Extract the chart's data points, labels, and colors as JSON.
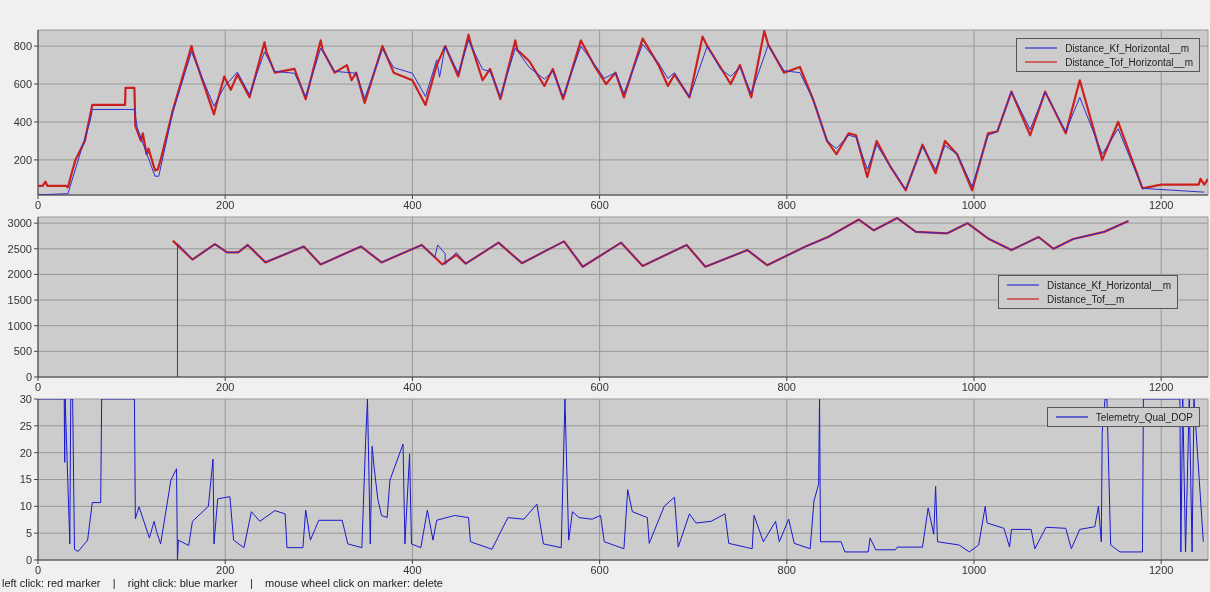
{
  "chart_data": [
    {
      "type": "line",
      "xlim": [
        0,
        1250
      ],
      "xticks": [
        0,
        200,
        400,
        600,
        800,
        1000,
        1200
      ],
      "ylim": [
        15,
        885
      ],
      "yticks": [
        200,
        400,
        600,
        800
      ],
      "grid": true,
      "legend": "top right",
      "series": [
        {
          "name": "Distance_Kf_Horizontal__m",
          "color": "#3030d0",
          "x": [
            0,
            32,
            56,
            58,
            103,
            106,
            125,
            129,
            144,
            164,
            188,
            199,
            213,
            226,
            242,
            253,
            274,
            286,
            302,
            317,
            340,
            349,
            368,
            380,
            400,
            414,
            426,
            429,
            435,
            449,
            460,
            475,
            483,
            494,
            510,
            525,
            541,
            550,
            561,
            580,
            594,
            605,
            617,
            626,
            646,
            663,
            673,
            680,
            696,
            715,
            729,
            740,
            750,
            762,
            780,
            797,
            814,
            828,
            843,
            853,
            866,
            874,
            886,
            896,
            910,
            927,
            945,
            959,
            969,
            982,
            998,
            1015,
            1025,
            1040,
            1060,
            1076,
            1098,
            1113,
            1137,
            1154,
            1180,
            1246
          ],
          "values": [
            16,
            22,
            411,
            466,
            466,
            370,
            114,
            114,
            452,
            770,
            483,
            585,
            663,
            544,
            770,
            667,
            657,
            534,
            790,
            667,
            657,
            524,
            784,
            687,
            657,
            534,
            728,
            636,
            800,
            657,
            830,
            677,
            667,
            534,
            790,
            687,
            626,
            667,
            534,
            800,
            708,
            630,
            660,
            550,
            810,
            710,
            630,
            660,
            530,
            800,
            680,
            640,
            690,
            550,
            804,
            670,
            660,
            520,
            300,
            260,
            330,
            320,
            150,
            280,
            170,
            46,
            270,
            150,
            276,
            230,
            60,
            330,
            350,
            560,
            360,
            556,
            350,
            530,
            230,
            364,
            50,
            30
          ]
        },
        {
          "name": "Distance_Tof_Horizontal__m",
          "color": "#cc2020",
          "x": [
            0,
            5,
            8,
            10,
            30,
            32,
            36,
            40,
            50,
            58,
            93,
            93.5,
            103,
            104,
            110,
            112,
            116,
            118,
            125,
            128,
            131,
            144,
            164,
            166,
            188,
            190,
            199,
            206,
            213,
            226,
            242,
            244,
            253,
            274,
            286,
            302,
            304,
            317,
            330,
            335,
            340,
            349,
            368,
            380,
            400,
            414,
            426,
            435,
            449,
            460,
            462,
            475,
            483,
            494,
            510,
            512,
            525,
            541,
            550,
            561,
            580,
            594,
            607,
            617,
            626,
            646,
            663,
            673,
            680,
            696,
            710,
            715,
            729,
            740,
            750,
            762,
            776,
            780,
            797,
            814,
            828,
            843,
            853,
            866,
            874,
            886,
            896,
            910,
            927,
            945,
            959,
            969,
            982,
            998,
            1015,
            1025,
            1040,
            1060,
            1076,
            1098,
            1113,
            1137,
            1154,
            1180,
            1200,
            1240,
            1242,
            1246,
            1250
          ],
          "values": [
            63,
            63,
            85,
            63,
            63,
            55,
            130,
            200,
            300,
            490,
            490,
            580,
            580,
            380,
            300,
            340,
            230,
            260,
            145,
            150,
            200,
            460,
            800,
            760,
            440,
            480,
            640,
            570,
            650,
            530,
            820,
            770,
            660,
            680,
            520,
            830,
            780,
            660,
            700,
            620,
            660,
            500,
            800,
            660,
            620,
            490,
            700,
            800,
            640,
            860,
            820,
            620,
            680,
            520,
            830,
            780,
            720,
            590,
            680,
            520,
            830,
            700,
            600,
            660,
            530,
            840,
            700,
            590,
            650,
            530,
            850,
            800,
            690,
            600,
            700,
            530,
            880,
            810,
            660,
            690,
            520,
            300,
            230,
            340,
            330,
            110,
            300,
            170,
            40,
            280,
            130,
            300,
            230,
            40,
            340,
            350,
            560,
            330,
            560,
            340,
            620,
            200,
            400,
            50,
            70,
            70,
            100,
            70,
            100
          ]
        }
      ]
    },
    {
      "type": "line",
      "xlim": [
        0,
        1250
      ],
      "xticks": [
        0,
        200,
        400,
        600,
        800,
        1000,
        1200
      ],
      "ylim": [
        0,
        3120
      ],
      "yticks": [
        0,
        500,
        1000,
        1500,
        2000,
        2500,
        3000
      ],
      "grid": true,
      "legend": "right",
      "series": [
        {
          "name": "Distance_Kf_Horizontal__m",
          "color": "#3030d0",
          "x": [
            149,
            149,
            165,
            189,
            202,
            214,
            224,
            243,
            284,
            302,
            345,
            367,
            410,
            424,
            427,
            435,
            435,
            447,
            457,
            492,
            517,
            562,
            582,
            623,
            646,
            693,
            713,
            758,
            779,
            820,
            844,
            877,
            893,
            918,
            938,
            971,
            993,
            1016,
            1040,
            1069,
            1085,
            1106,
            1139,
            1165
          ],
          "values": [
            0,
            2600,
            2290,
            2590,
            2430,
            2430,
            2575,
            2235,
            2545,
            2195,
            2545,
            2235,
            2575,
            2335,
            2575,
            2405,
            2195,
            2430,
            2210,
            2620,
            2220,
            2645,
            2150,
            2620,
            2165,
            2575,
            2150,
            2475,
            2180,
            2545,
            2730,
            3070,
            2860,
            3100,
            2830,
            2800,
            3000,
            2690,
            2475,
            2730,
            2500,
            2690,
            2830,
            3040
          ]
        },
        {
          "name": "Distance_Tof__m",
          "color": "#cc2020",
          "x": [
            144,
            165,
            189,
            202,
            214,
            224,
            243,
            284,
            302,
            345,
            367,
            410,
            424,
            432,
            447,
            457,
            492,
            517,
            562,
            582,
            623,
            646,
            693,
            713,
            758,
            779,
            820,
            844,
            877,
            893,
            918,
            938,
            971,
            993,
            1016,
            1040,
            1069,
            1085,
            1106,
            1139,
            1165
          ],
          "values": [
            2660,
            2290,
            2590,
            2430,
            2430,
            2575,
            2235,
            2545,
            2195,
            2545,
            2235,
            2575,
            2335,
            2195,
            2380,
            2210,
            2620,
            2220,
            2645,
            2150,
            2620,
            2165,
            2575,
            2150,
            2475,
            2180,
            2545,
            2730,
            3070,
            2860,
            3100,
            2830,
            2800,
            3000,
            2690,
            2475,
            2730,
            2500,
            2690,
            2830,
            3040
          ]
        }
      ]
    },
    {
      "type": "line",
      "xlim": [
        0,
        1250
      ],
      "xticks": [
        0,
        200,
        400,
        600,
        800,
        1000,
        1200
      ],
      "ylim": [
        0,
        30
      ],
      "yticks": [
        0,
        5,
        10,
        15,
        20,
        25,
        30
      ],
      "grid": true,
      "legend": "top right",
      "annotations": [
        "left click: red marker    |    right click: blue marker    |    mouse wheel click on marker: delete"
      ],
      "series": [
        {
          "name": "Telemetry_Qual_DOP",
          "color": "#1a1acc",
          "x": [
            0,
            28,
            28.5,
            29,
            34,
            35,
            37,
            39,
            43,
            53,
            58,
            67,
            68,
            103,
            104,
            108,
            119,
            124,
            127,
            131,
            142,
            148,
            149,
            150,
            161,
            165,
            182,
            187,
            188,
            192,
            205,
            209,
            220,
            228,
            237,
            253,
            264,
            266,
            283,
            286,
            291,
            300,
            325,
            331,
            346,
            350,
            352,
            355,
            357,
            359,
            363,
            367,
            373,
            376,
            390,
            392,
            397,
            399,
            409,
            416,
            422,
            426,
            445,
            460,
            462,
            485,
            502,
            519,
            533,
            540,
            559,
            563,
            565,
            567,
            571,
            578,
            592,
            601,
            605,
            626,
            630,
            635,
            651,
            653,
            669,
            680,
            684,
            696,
            703,
            719,
            734,
            738,
            763,
            765,
            775,
            788,
            792,
            802,
            808,
            825,
            829,
            834,
            835,
            836,
            858,
            862,
            887,
            889,
            895,
            916,
            918,
            945,
            951,
            957,
            959,
            961,
            984,
            995,
            1005,
            1012,
            1014,
            1032,
            1038,
            1040,
            1061,
            1065,
            1077,
            1098,
            1104,
            1113,
            1129,
            1133,
            1136,
            1137,
            1140,
            1142,
            1146,
            1156,
            1180,
            1181,
            1220,
            1221,
            1223,
            1226,
            1230,
            1233,
            1235,
            1245
          ],
          "values": [
            30,
            30,
            18.2,
            30,
            3,
            30,
            30,
            2,
            1.6,
            3.7,
            10.7,
            10.7,
            30,
            30,
            7.7,
            9.9,
            4.1,
            7.2,
            5.1,
            3,
            14.9,
            17,
            0,
            3.7,
            2.7,
            7.2,
            10,
            18.8,
            3,
            11.4,
            11.8,
            3.7,
            2.3,
            9,
            7.2,
            9.2,
            8.6,
            2.3,
            2.3,
            9.3,
            3.7,
            7.4,
            7.4,
            3,
            2.3,
            22,
            30,
            3,
            21.2,
            17.4,
            11.4,
            8.3,
            7.9,
            14.9,
            21.6,
            3,
            19.8,
            3,
            2.3,
            9.3,
            3.7,
            7.4,
            8.3,
            7.9,
            3.4,
            2,
            7.9,
            7.6,
            10.4,
            3,
            2.3,
            30,
            16.5,
            3.7,
            9,
            7.9,
            7.6,
            8.3,
            3.4,
            2.1,
            13.1,
            9,
            7.9,
            3.1,
            10,
            11.7,
            2.4,
            8.6,
            6.9,
            7.2,
            8.6,
            3.1,
            2.1,
            8.3,
            3.4,
            7.2,
            3.4,
            7.6,
            3.1,
            2.1,
            11,
            14.1,
            30,
            3.4,
            3.4,
            1.5,
            1.5,
            4.1,
            1.9,
            1.9,
            2.4,
            2.4,
            9.7,
            4.8,
            13.7,
            3.4,
            2.8,
            1.5,
            2.8,
            10,
            6.9,
            5.9,
            2.4,
            5.7,
            5.7,
            2.1,
            6.1,
            5.9,
            2.1,
            5.7,
            6.2,
            10,
            3.4,
            23.8,
            30,
            30,
            2.8,
            1.5,
            1.5,
            30,
            30,
            1.5,
            30,
            1.5,
            30,
            1.5,
            30,
            3.4
          ]
        }
      ]
    }
  ]
}
